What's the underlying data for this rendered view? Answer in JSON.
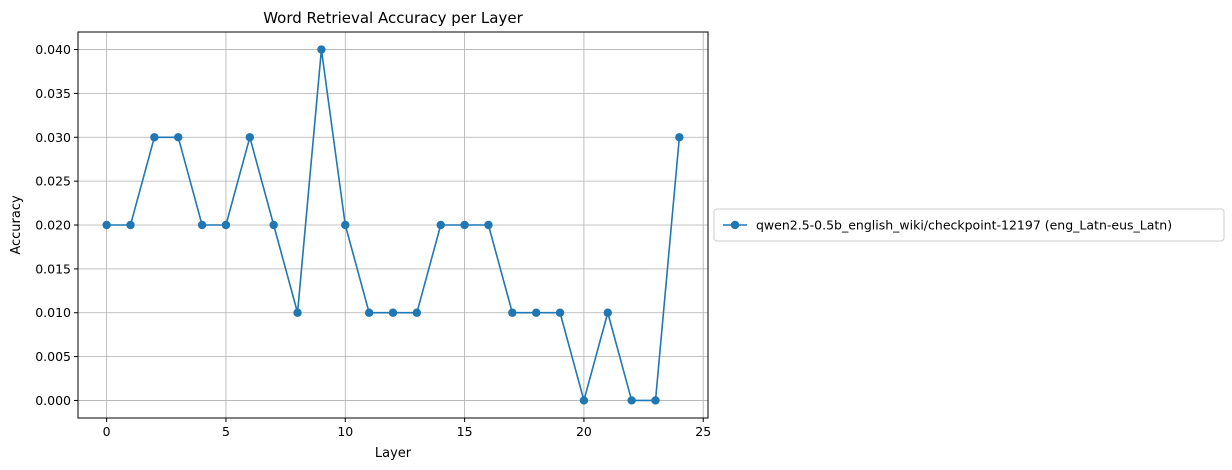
{
  "chart_data": {
    "type": "line",
    "title": "Word Retrieval Accuracy per Layer",
    "xlabel": "Layer",
    "ylabel": "Accuracy",
    "xlim": [
      -1.2,
      25.2
    ],
    "ylim": [
      -0.002,
      0.042
    ],
    "x_ticks": [
      0,
      5,
      10,
      15,
      20,
      25
    ],
    "y_ticks": [
      0.0,
      0.005,
      0.01,
      0.015,
      0.02,
      0.025,
      0.03,
      0.035,
      0.04
    ],
    "y_tick_labels": [
      "0.000",
      "0.005",
      "0.010",
      "0.015",
      "0.020",
      "0.025",
      "0.030",
      "0.035",
      "0.040"
    ],
    "x_tick_labels": [
      "0",
      "5",
      "10",
      "15",
      "20",
      "25"
    ],
    "grid": true,
    "legend_position": "outside-right",
    "series": [
      {
        "name": "qwen2.5-0.5b_english_wiki/checkpoint-12197 (eng_Latn-eus_Latn)",
        "color": "#1f77b4",
        "marker": "circle",
        "x": [
          0,
          1,
          2,
          3,
          4,
          5,
          6,
          7,
          8,
          9,
          10,
          11,
          12,
          13,
          14,
          15,
          16,
          17,
          18,
          19,
          20,
          21,
          22,
          23,
          24
        ],
        "values": [
          0.02,
          0.02,
          0.03,
          0.03,
          0.02,
          0.02,
          0.03,
          0.02,
          0.01,
          0.04,
          0.02,
          0.01,
          0.01,
          0.01,
          0.02,
          0.02,
          0.02,
          0.01,
          0.01,
          0.01,
          0.0,
          0.01,
          0.0,
          0.0,
          0.03
        ]
      }
    ]
  }
}
